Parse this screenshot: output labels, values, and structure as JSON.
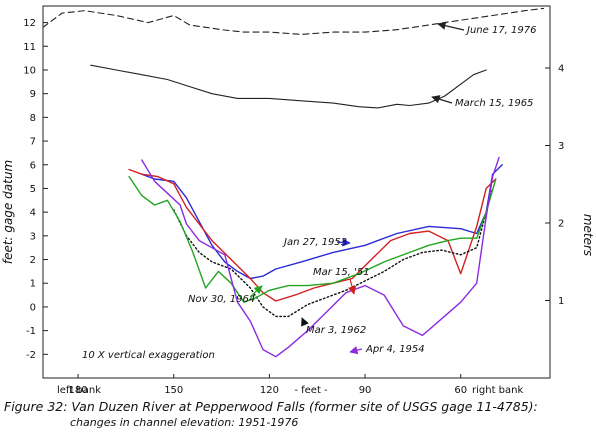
{
  "chart_data": {
    "type": "line",
    "title": "Figure 32: Van Duzen River at Pepperwood Falls (former site of USGS gage 11-4785):",
    "subtitle": "changes in channel elevation: 1951-1976",
    "xlabel": "- feet -",
    "ylabel": "feet: gage datum",
    "y2label": "meters",
    "x_reversed": true,
    "xlim": [
      191,
      32
    ],
    "ylim": [
      -3,
      12.7
    ],
    "y2lim": [
      0,
      4.8
    ],
    "x_ticks": [
      180,
      150,
      120,
      90,
      60
    ],
    "y_ticks": [
      -2,
      -1,
      0,
      1,
      2,
      3,
      4,
      5,
      6,
      7,
      8,
      9,
      10,
      11,
      12
    ],
    "y2_ticks": [
      1,
      2,
      3,
      4
    ],
    "bank_labels": {
      "left": "left bank",
      "right": "right bank"
    },
    "annotation": "10 X vertical exaggeration",
    "series": [
      {
        "name": "June 17, 1976",
        "color": "#222222",
        "dash": "6,4",
        "x": [
          191,
          185,
          178,
          168,
          158,
          150,
          145,
          140,
          135,
          128,
          120,
          110,
          100,
          90,
          80,
          70,
          60,
          50,
          40,
          34
        ],
        "y": [
          11.8,
          12.4,
          12.5,
          12.3,
          12.0,
          12.3,
          11.9,
          11.8,
          11.7,
          11.6,
          11.6,
          11.5,
          11.6,
          11.6,
          11.7,
          11.9,
          12.1,
          12.3,
          12.5,
          12.6
        ]
      },
      {
        "name": "March 15, 1965",
        "color": "#222222",
        "dash": "",
        "x": [
          176,
          168,
          160,
          152,
          145,
          138,
          130,
          120,
          110,
          100,
          92,
          86,
          80,
          76,
          70,
          65,
          60,
          56,
          52
        ],
        "y": [
          10.2,
          10.0,
          9.8,
          9.6,
          9.3,
          9.0,
          8.8,
          8.8,
          8.7,
          8.6,
          8.45,
          8.4,
          8.55,
          8.5,
          8.6,
          8.9,
          9.4,
          9.8,
          10.0
        ]
      },
      {
        "name": "Jan 27, 1953",
        "color": "#2b2bd6",
        "dash": "",
        "x": [
          160,
          156,
          150,
          146,
          142,
          138,
          134,
          130,
          126,
          122,
          118,
          110,
          100,
          90,
          80,
          70,
          60,
          55,
          52,
          50,
          47
        ],
        "y": [
          5.6,
          5.4,
          5.3,
          4.6,
          3.6,
          2.6,
          1.9,
          1.5,
          1.2,
          1.3,
          1.6,
          1.9,
          2.3,
          2.6,
          3.1,
          3.4,
          3.3,
          3.1,
          4.0,
          5.6,
          6.0
        ]
      },
      {
        "name": "Mar 15, '51",
        "color": "#d42020",
        "dash": "",
        "x": [
          164,
          160,
          155,
          150,
          146,
          142,
          138,
          132,
          126,
          122,
          118,
          112,
          106,
          100,
          94,
          88,
          82,
          76,
          70,
          64,
          60,
          55,
          52,
          49
        ],
        "y": [
          5.8,
          5.6,
          5.5,
          5.2,
          4.2,
          3.5,
          2.8,
          2.0,
          1.2,
          0.6,
          0.25,
          0.5,
          0.8,
          1.0,
          1.2,
          2.0,
          2.8,
          3.1,
          3.2,
          2.8,
          1.4,
          3.4,
          5.0,
          5.4
        ]
      },
      {
        "name": "Mar 3, 1962",
        "color": "#111111",
        "dash": "1.5,2.5",
        "x": [
          150,
          146,
          142,
          138,
          132,
          126,
          122,
          118,
          114,
          108,
          102,
          96,
          90,
          84,
          78,
          72,
          66,
          60,
          55,
          52,
          50
        ],
        "y": [
          4.1,
          3.0,
          2.3,
          1.9,
          1.6,
          0.8,
          0.0,
          -0.4,
          -0.4,
          0.1,
          0.4,
          0.7,
          1.1,
          1.5,
          2.0,
          2.3,
          2.4,
          2.2,
          2.5,
          4.0,
          5.0
        ]
      },
      {
        "name": "Nov 30, 1964",
        "color": "#22a522",
        "dash": "",
        "x": [
          164,
          160,
          156,
          152,
          148,
          144,
          140,
          136,
          132,
          128,
          124,
          120,
          114,
          108,
          100,
          92,
          84,
          76,
          70,
          64,
          60,
          55,
          52,
          49
        ],
        "y": [
          5.5,
          4.7,
          4.3,
          4.5,
          3.6,
          2.3,
          0.8,
          1.5,
          1.0,
          0.2,
          0.4,
          0.7,
          0.9,
          0.9,
          1.0,
          1.4,
          1.9,
          2.3,
          2.6,
          2.8,
          2.9,
          2.9,
          4.0,
          5.4
        ]
      },
      {
        "name": "Apr 4, 1954",
        "color": "#8a2be2",
        "dash": "",
        "x": [
          160,
          156,
          152,
          148,
          146,
          142,
          138,
          134,
          130,
          126,
          122,
          118,
          114,
          108,
          102,
          96,
          90,
          84,
          78,
          72,
          66,
          60,
          55,
          52,
          50,
          48
        ],
        "y": [
          6.2,
          5.3,
          4.8,
          4.3,
          3.5,
          2.8,
          2.5,
          2.2,
          0.2,
          -0.6,
          -1.8,
          -2.1,
          -1.7,
          -1.0,
          -0.2,
          0.6,
          0.9,
          0.5,
          -0.8,
          -1.2,
          -0.5,
          0.2,
          1.0,
          3.8,
          5.5,
          6.3
        ]
      }
    ],
    "series_labels": [
      {
        "text": "June 17, 1976",
        "series": 0
      },
      {
        "text": "March 15, 1965",
        "series": 1
      },
      {
        "text": "Jan 27, 1953",
        "series": 2
      },
      {
        "text": "Mar 15, '51",
        "series": 3
      },
      {
        "text": "Nov 30, 1964",
        "series": 5
      },
      {
        "text": "Mar 3, 1962",
        "series": 4
      },
      {
        "text": "Apr 4, 1954",
        "series": 6
      }
    ]
  }
}
